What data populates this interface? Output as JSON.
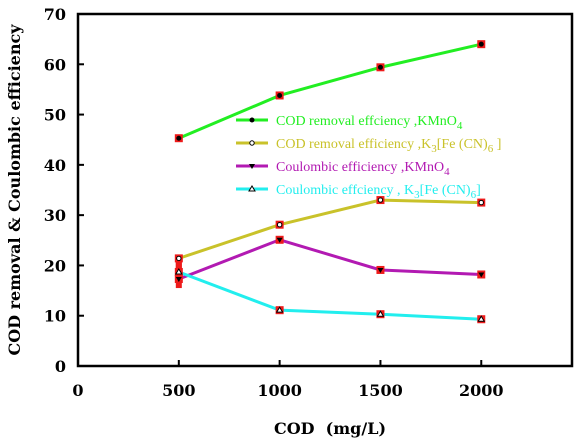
{
  "chart_data": {
    "type": "line",
    "xlabel": "COD  (mg/L)",
    "ylabel": "COD removal & Coulombic efficiency",
    "xlim": [
      0,
      2450
    ],
    "ylim": [
      0,
      70
    ],
    "xticks": [
      0,
      500,
      1000,
      1500,
      2000
    ],
    "yticks": [
      0,
      10,
      20,
      30,
      40,
      50,
      60,
      70
    ],
    "grid": false,
    "legend_position": "center-right",
    "series": [
      {
        "name": "COD removal effciency ,KMnO",
        "sub": "4",
        "suffix": "",
        "color": "#22ee22",
        "marker": "circle",
        "x": [
          500,
          1000,
          1500,
          2000
        ],
        "y": [
          45.3,
          53.8,
          59.4,
          64.0
        ]
      },
      {
        "name": "COD removal efficiency ,K",
        "sub": "3",
        "suffix": "[Fe (CN)",
        "sub2": "6",
        "suffix2": " ]",
        "color": "#c9c22a",
        "marker": "open-circle",
        "x": [
          500,
          1000,
          1500,
          2000
        ],
        "y": [
          21.4,
          28.1,
          33.0,
          32.5
        ]
      },
      {
        "name": "Coulombic efficiency ,KMnO",
        "sub": "4",
        "suffix": "",
        "color": "#b21ab2",
        "marker": "triangle-down",
        "x": [
          500,
          1000,
          1500,
          2000
        ],
        "y": [
          17.3,
          25.1,
          19.1,
          18.2
        ]
      },
      {
        "name": "Coulombic effciency , K",
        "sub": "3",
        "suffix": "[Fe (CN)",
        "sub2": "6",
        "suffix2": "]",
        "color": "#22eeee",
        "marker": "open-triangle",
        "x": [
          500,
          1000,
          1500,
          2000
        ],
        "y": [
          18.7,
          11.1,
          10.3,
          9.3
        ]
      }
    ],
    "error_bars_at_500": [
      [
        17.5,
        21.8
      ],
      [
        15.5,
        21.0
      ]
    ]
  }
}
